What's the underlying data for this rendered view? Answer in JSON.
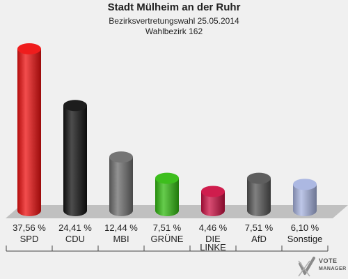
{
  "header": {
    "title": "Stadt Mülheim an der Ruhr",
    "subtitle": "Bezirksvertretungswahl 25.05.2014",
    "district": "Wahlbezirk 162"
  },
  "chart_data": {
    "type": "bar",
    "title": "Stadt Mülheim an der Ruhr",
    "categories": [
      "SPD",
      "CDU",
      "MBI",
      "GRÜNE",
      "DIE LINKE",
      "AfD",
      "Sonstige"
    ],
    "values": [
      37.56,
      24.41,
      12.44,
      7.51,
      4.46,
      7.51,
      6.1
    ],
    "labels": [
      "37,56 %",
      "24,41 %",
      "12,44 %",
      "7,51 %",
      "4,46 %",
      "7,51 %",
      "6,10 %"
    ],
    "colors": [
      "#ee1111",
      "#111111",
      "#6e6e6e",
      "#33bb11",
      "#cc1144",
      "#555555",
      "#a8b4e0"
    ],
    "ylim": [
      0,
      37.56
    ],
    "grid": false,
    "legend": "none"
  },
  "logo": {
    "line1": "VOTE",
    "line2": "MANAGER"
  }
}
